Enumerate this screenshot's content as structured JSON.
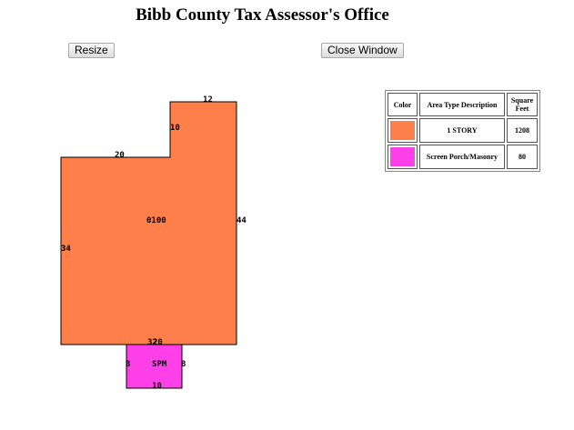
{
  "page": {
    "title": "Bibb County Tax Assessor's Office"
  },
  "toolbar": {
    "resize_label": "Resize",
    "close_label": "Close Window"
  },
  "sketch": {
    "areas": [
      {
        "code": "0100",
        "color": "#ff7f4a",
        "dimensions": [
          "12",
          "10",
          "20",
          "44",
          "34",
          "32"
        ]
      },
      {
        "code": "SPM",
        "color": "#ff40e8",
        "dimensions": [
          "20",
          "8",
          "8",
          "10"
        ]
      }
    ]
  },
  "legend": {
    "headers": {
      "color": "Color",
      "area_type": "Area Type Description",
      "square_feet": "Square Feet"
    },
    "rows": [
      {
        "color": "#ff7f4a",
        "description": "1 STORY",
        "square_feet": "1208"
      },
      {
        "color": "#ff40e8",
        "description": "Screen Porch/Masonry",
        "square_feet": "80"
      }
    ]
  }
}
